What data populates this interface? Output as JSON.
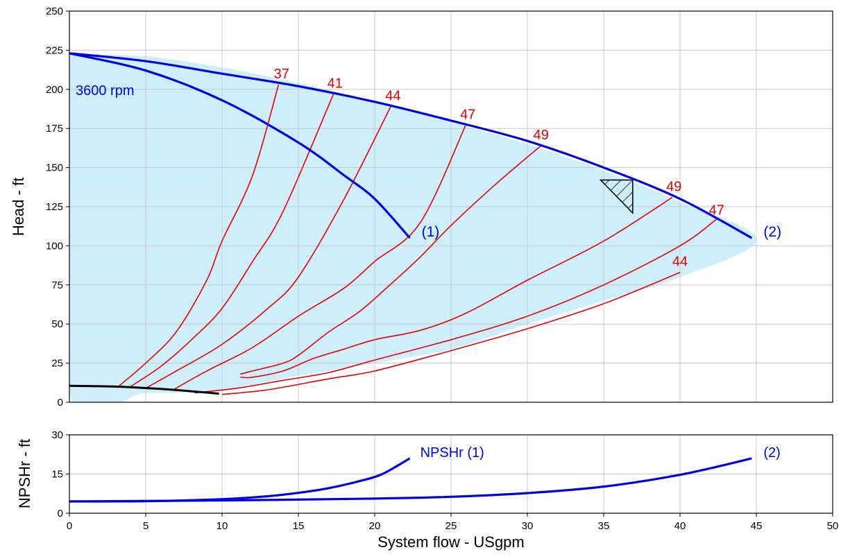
{
  "chart_data": [
    {
      "type": "line",
      "panel": "head",
      "ylabel": "Head - ft",
      "xlim": [
        0,
        50
      ],
      "ylim": [
        0,
        250
      ],
      "x_ticks": [
        "0",
        "5",
        "10",
        "15",
        "20",
        "25",
        "30",
        "35",
        "40",
        "45",
        "50"
      ],
      "y_ticks": [
        "0",
        "25",
        "50",
        "75",
        "100",
        "125",
        "150",
        "175",
        "200",
        "225",
        "250"
      ],
      "grid": true,
      "colors": {
        "curve": "#0000e6",
        "efficiency": "#e60000",
        "region": "#cdeefa",
        "npsh_limit": "#000000"
      },
      "labels": {
        "speed": "3600 rpm",
        "curve1": "(1)",
        "curve2": "(2)"
      },
      "region": [
        [
          0,
          223
        ],
        [
          5,
          221
        ],
        [
          10,
          214
        ],
        [
          15,
          204
        ],
        [
          20,
          192
        ],
        [
          25,
          179
        ],
        [
          30,
          165
        ],
        [
          35,
          148
        ],
        [
          40,
          128
        ],
        [
          45,
          104
        ],
        [
          40,
          80
        ],
        [
          35,
          65
        ],
        [
          30,
          50
        ],
        [
          25,
          34
        ],
        [
          20,
          25
        ],
        [
          15,
          17
        ],
        [
          10,
          8
        ],
        [
          5,
          6
        ],
        [
          0,
          7
        ]
      ],
      "series": [
        {
          "key": "curve1",
          "points": [
            [
              0,
              223
            ],
            [
              5,
              212
            ],
            [
              10,
              193
            ],
            [
              15,
              166
            ],
            [
              18,
              145
            ],
            [
              20,
              130
            ],
            [
              22.3,
              105
            ]
          ]
        },
        {
          "key": "curve2",
          "points": [
            [
              0,
              223
            ],
            [
              5,
              218
            ],
            [
              10,
              210
            ],
            [
              15,
              202
            ],
            [
              20,
              192
            ],
            [
              25,
              180
            ],
            [
              30,
              167
            ],
            [
              35,
              150
            ],
            [
              40,
              130
            ],
            [
              44.7,
              105
            ]
          ]
        }
      ],
      "npsh_limit": [
        [
          0,
          10.5
        ],
        [
          3,
          10
        ],
        [
          6,
          8.5
        ],
        [
          8,
          7
        ],
        [
          9.8,
          5.5
        ]
      ],
      "hatch": {
        "triangle": [
          [
            34.8,
            142
          ],
          [
            36.9,
            142
          ],
          [
            36.9,
            121
          ]
        ]
      },
      "efficiency_lines": [
        {
          "label": "37",
          "label_at": [
            13.9,
            207
          ],
          "points": [
            [
              3.2,
              10
            ],
            [
              5,
              25
            ],
            [
              7,
              45
            ],
            [
              9,
              78
            ],
            [
              10,
              103
            ],
            [
              12,
              145
            ],
            [
              13.7,
              203
            ]
          ]
        },
        {
          "label": "41",
          "label_at": [
            17.4,
            201
          ],
          "points": [
            [
              4,
              10
            ],
            [
              6,
              23
            ],
            [
              8,
              40
            ],
            [
              10,
              60
            ],
            [
              12,
              90
            ],
            [
              14,
              122
            ],
            [
              17.3,
              197
            ]
          ]
        },
        {
          "label": "44",
          "label_at": [
            21.2,
            193
          ],
          "points": [
            [
              5,
              9
            ],
            [
              7,
              20
            ],
            [
              10,
              37
            ],
            [
              13,
              60
            ],
            [
              15,
              80
            ],
            [
              18,
              130
            ],
            [
              21.1,
              190
            ]
          ]
        },
        {
          "label": "47",
          "label_at": [
            26.1,
            181
          ],
          "points": [
            [
              6.8,
              8
            ],
            [
              9,
              20
            ],
            [
              12,
              35
            ],
            [
              15,
              55
            ],
            [
              18,
              73
            ],
            [
              20,
              90
            ],
            [
              23,
              115
            ],
            [
              26,
              178
            ]
          ]
        },
        {
          "label": "49",
          "label_at": [
            30.9,
            168
          ],
          "points": [
            [
              11.2,
              18
            ],
            [
              12,
              20
            ],
            [
              14,
              25
            ],
            [
              15,
              30
            ],
            [
              17,
              45
            ],
            [
              19,
              58
            ],
            [
              21,
              75
            ],
            [
              23,
              93
            ],
            [
              25,
              113
            ],
            [
              28,
              140
            ],
            [
              30.9,
              164
            ]
          ]
        },
        {
          "label": "49",
          "label_at": [
            39.6,
            135
          ],
          "points": [
            [
              11.2,
              16
            ],
            [
              12,
              16
            ],
            [
              14,
              20
            ],
            [
              16,
              28
            ],
            [
              18,
              34
            ],
            [
              20,
              40
            ],
            [
              23,
              46
            ],
            [
              26,
              57
            ],
            [
              30,
              78
            ],
            [
              35,
              103
            ],
            [
              39.5,
              131
            ]
          ]
        },
        {
          "label": "47",
          "label_at": [
            42.4,
            120
          ],
          "points": [
            [
              8.2,
              6
            ],
            [
              11,
              9
            ],
            [
              14,
              14
            ],
            [
              17,
              19
            ],
            [
              20,
              27
            ],
            [
              25,
              40
            ],
            [
              30,
              55
            ],
            [
              35,
              75
            ],
            [
              40,
              100
            ],
            [
              42.4,
              117
            ]
          ]
        },
        {
          "label": "44",
          "label_at": [
            40.0,
            87
          ],
          "points": [
            [
              10,
              5
            ],
            [
              13,
              8
            ],
            [
              17,
              15
            ],
            [
              20,
              20
            ],
            [
              25,
              33
            ],
            [
              30,
              47
            ],
            [
              35,
              63
            ],
            [
              40,
              83
            ]
          ]
        }
      ]
    },
    {
      "type": "line",
      "panel": "npshr",
      "ylabel": "NPSHr - ft",
      "xlabel": "System flow - USgpm",
      "xlim": [
        0,
        50
      ],
      "ylim": [
        0,
        30
      ],
      "x_ticks": [
        "0",
        "5",
        "10",
        "15",
        "20",
        "25",
        "30",
        "35",
        "40",
        "45",
        "50"
      ],
      "y_ticks": [
        "0",
        "15",
        "30"
      ],
      "grid": true,
      "labels": {
        "curve1": "NPSHr (1)",
        "curve2": "(2)"
      },
      "series": [
        {
          "key": "curve1",
          "points": [
            [
              0,
              4.5
            ],
            [
              5,
              4.6
            ],
            [
              10,
              5.4
            ],
            [
              13,
              6.5
            ],
            [
              15,
              7.8
            ],
            [
              17,
              9.6
            ],
            [
              19,
              12.3
            ],
            [
              20.5,
              15
            ],
            [
              22.3,
              21
            ]
          ]
        },
        {
          "key": "curve2",
          "points": [
            [
              0,
              4.5
            ],
            [
              10,
              4.9
            ],
            [
              20,
              5.6
            ],
            [
              25,
              6.3
            ],
            [
              30,
              7.7
            ],
            [
              35,
              10.2
            ],
            [
              40,
              14.7
            ],
            [
              44.7,
              21
            ]
          ]
        }
      ]
    }
  ]
}
